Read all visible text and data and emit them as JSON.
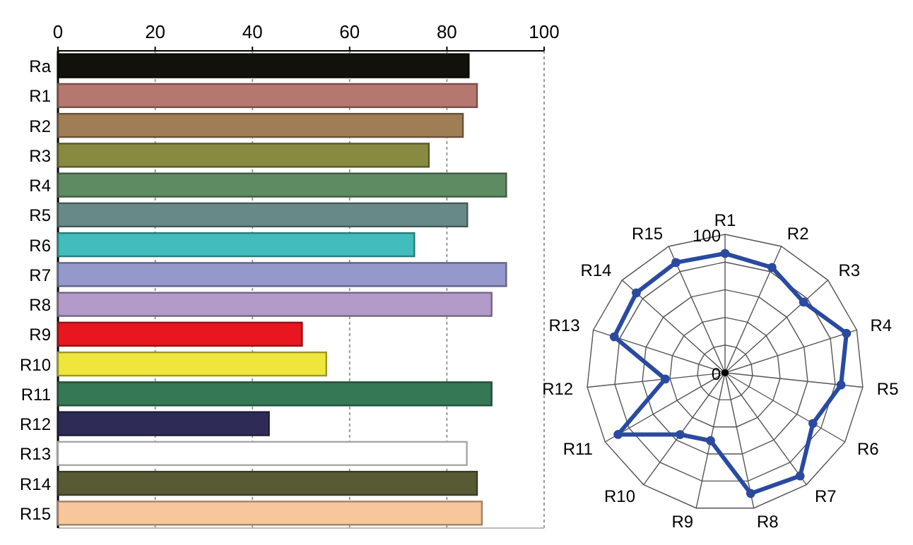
{
  "chart_data": [
    {
      "type": "bar",
      "orientation": "horizontal",
      "categories": [
        "Ra",
        "R1",
        "R2",
        "R3",
        "R4",
        "R5",
        "R6",
        "R7",
        "R8",
        "R9",
        "R10",
        "R11",
        "R12",
        "R13",
        "R14",
        "R15"
      ],
      "values": [
        84.5,
        86.2,
        83.3,
        76.3,
        92.2,
        84.2,
        73.3,
        92.2,
        89.2,
        50.2,
        55.2,
        89.2,
        43.4,
        84.1,
        86.2,
        87.2
      ],
      "colors": [
        "#12120a",
        "#b5776e",
        "#a07e55",
        "#878a40",
        "#5f8b63",
        "#688a87",
        "#42bcbd",
        "#9598cb",
        "#b39bc9",
        "#e8171f",
        "#efe63c",
        "#357856",
        "#2e2c57",
        "#ffffff",
        "#575a35",
        "#f7c79b"
      ],
      "xlim": [
        0,
        100
      ],
      "xticks": [
        0,
        20,
        40,
        60,
        80,
        100
      ],
      "grid": "x"
    },
    {
      "type": "radar",
      "categories": [
        "R1",
        "R2",
        "R3",
        "R4",
        "R5",
        "R6",
        "R7",
        "R8",
        "R9",
        "R10",
        "R11",
        "R12",
        "R13",
        "R14",
        "R15"
      ],
      "series": [
        {
          "color": "#2a4aa0",
          "values": [
            86.2,
            83.3,
            76.3,
            92.2,
            84.2,
            73.3,
            92.2,
            89.2,
            50.2,
            55.2,
            89.2,
            43.4,
            84.1,
            86.2,
            87.2
          ]
        }
      ],
      "ylim": [
        0,
        100
      ],
      "yticks": [
        0,
        100
      ],
      "marker": "circle",
      "grid": true
    }
  ]
}
